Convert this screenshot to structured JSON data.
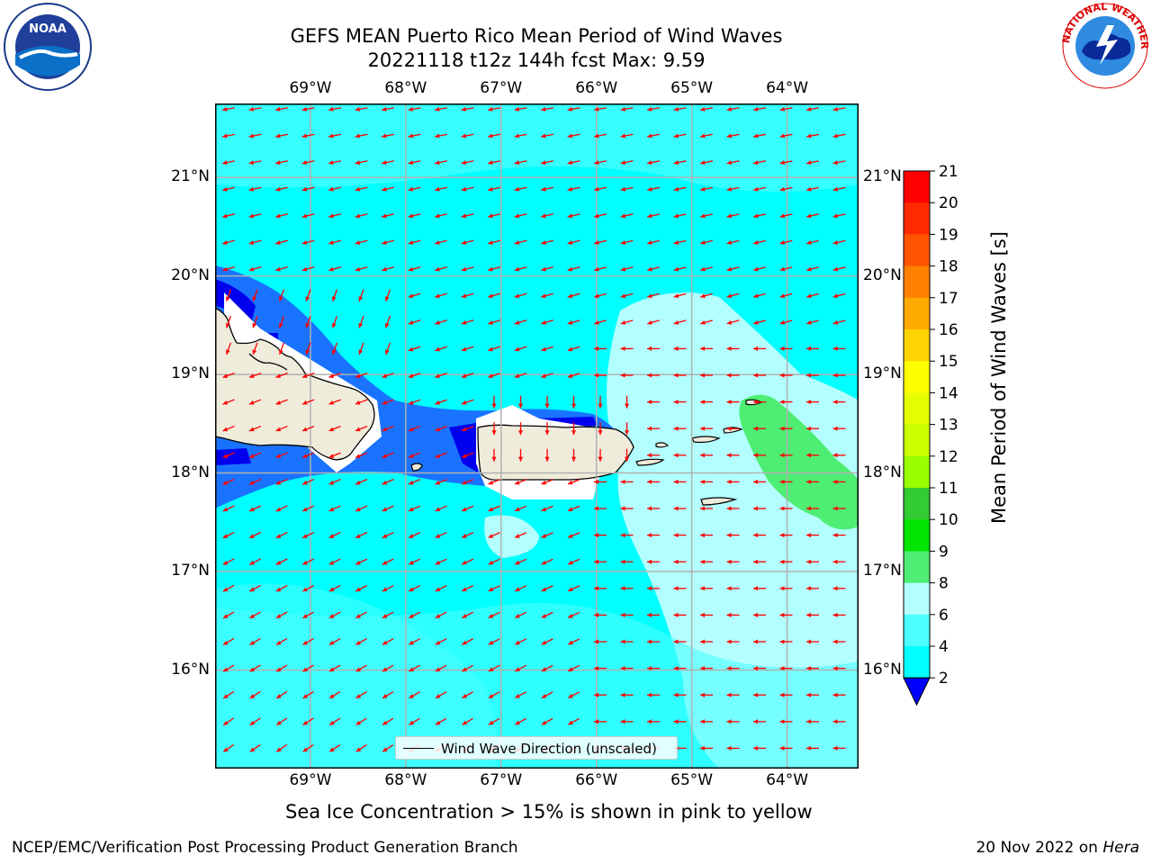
{
  "title": {
    "line1": "GEFS MEAN Puerto Rico Mean Period of Wind Waves",
    "line2": "20221118 t12z 144h fcst   Max: 9.59"
  },
  "logos": {
    "left": {
      "icon": "noaa-logo",
      "text": "NOAA"
    },
    "right": {
      "icon": "national-weather-service-logo",
      "text": "NATIONAL WEATHER SERVICE"
    }
  },
  "map": {
    "lon_labels": [
      "69°W",
      "68°W",
      "67°W",
      "66°W",
      "65°W",
      "64°W"
    ],
    "lat_labels": [
      "21°N",
      "20°N",
      "19°N",
      "18°N",
      "17°N",
      "16°N"
    ],
    "lon_values": [
      -69,
      -68,
      -67,
      -66,
      -65,
      -64
    ],
    "lat_values": [
      21,
      20,
      19,
      18,
      17,
      16
    ],
    "extent": {
      "lon": [
        -70,
        -63.25
      ],
      "lat": [
        15.0,
        21.75
      ]
    },
    "land_color": "#efecdc",
    "arrow_color": "#ff0000",
    "grid": true
  },
  "legend": {
    "label": "Wind Wave Direction (unscaled)"
  },
  "colorbar": {
    "label": "Mean Period of Wind Waves [s]",
    "ticks": [
      "21",
      "20",
      "19",
      "18",
      "17",
      "16",
      "15",
      "14",
      "13",
      "12",
      "11",
      "10",
      "9",
      "8",
      "6",
      "4",
      "2"
    ],
    "colors": [
      "#ff0000",
      "#ff2a00",
      "#ff5500",
      "#ff8000",
      "#ffaa00",
      "#ffd400",
      "#ffff00",
      "#e6ff00",
      "#ccff00",
      "#99ff00",
      "#33cc33",
      "#00e600",
      "#4dee73",
      "#b3ffff",
      "#4dffff",
      "#00ffff",
      "#0080ff"
    ],
    "extend_color": "#0000ff"
  },
  "captions": {
    "sea_ice": "Sea Ice Concentration > 15% is shown in pink to yellow",
    "footer_left": "NCEP/EMC/Verification Post Processing Product Generation Branch",
    "footer_right_prefix": "20 Nov 2022 on ",
    "footer_right_host": "Hera"
  }
}
